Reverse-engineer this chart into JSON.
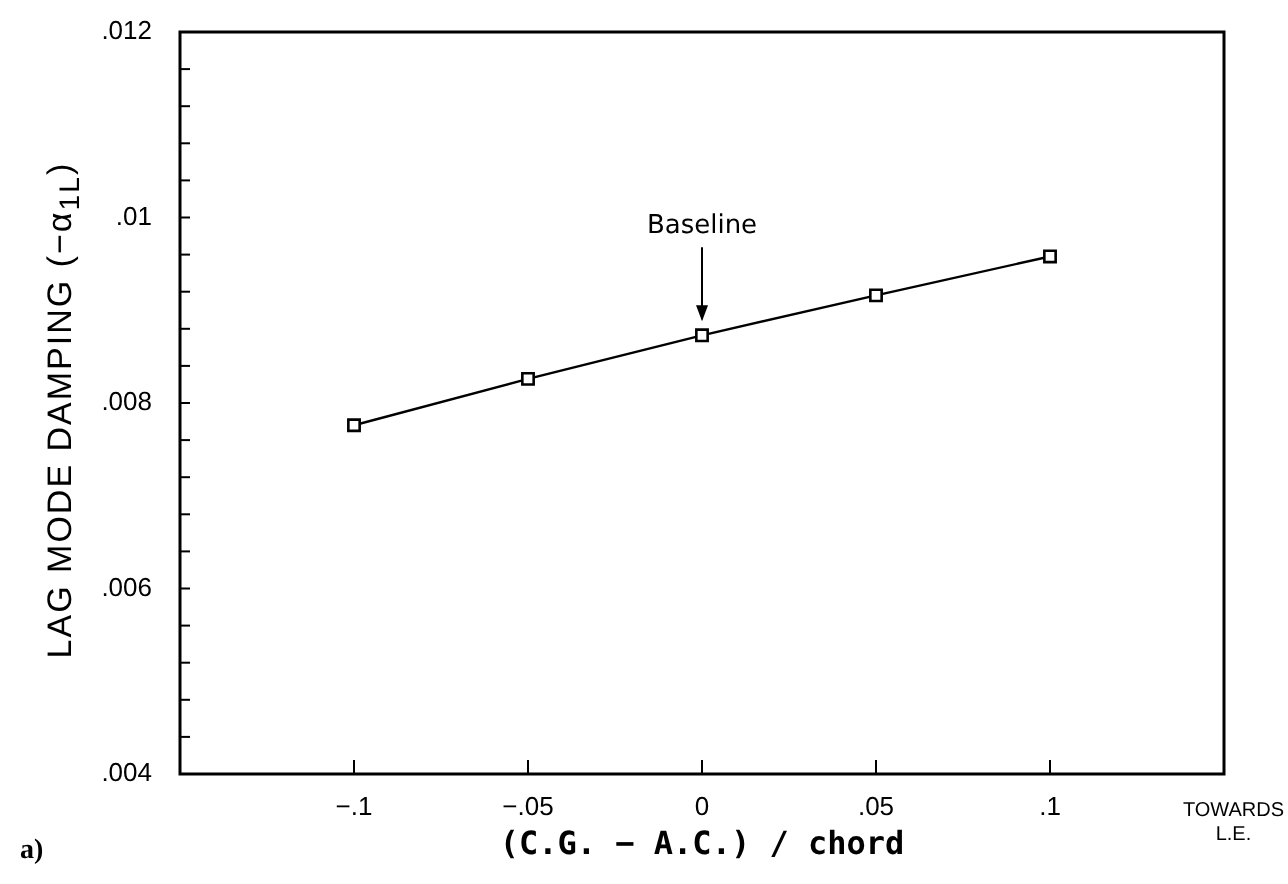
{
  "chart_data": {
    "type": "line",
    "xlabel": "(C.G. − A.C.) / chord",
    "ylabel": "LAG MODE DAMPING (−α$_{1L}$)",
    "x": [
      -0.1,
      -0.05,
      0,
      0.05,
      0.1
    ],
    "series": [
      {
        "color": "#000000",
        "values": [
          0.00776,
          0.00826,
          0.00873,
          0.00916,
          0.00958
        ]
      }
    ],
    "marker": "square",
    "line_style": "solid",
    "xlim": [
      -0.15,
      0.15
    ],
    "xticks": [
      {
        "value": -0.1,
        "label": "−.1"
      },
      {
        "value": -0.05,
        "label": "−.05"
      },
      0,
      {
        "value": 0.05,
        "label": ".05"
      },
      {
        "value": 0.1,
        "label": ".1"
      }
    ],
    "ylim": [
      0.004,
      0.012
    ],
    "yticks": [
      {
        "value": 0.004,
        "label": ".004"
      },
      {
        "value": 0.0044,
        "label": null
      },
      {
        "value": 0.0048,
        "label": null
      },
      {
        "value": 0.0052,
        "label": null
      },
      {
        "value": 0.0056,
        "label": null
      },
      {
        "value": 0.006,
        "label": ".006"
      },
      {
        "value": 0.0064,
        "label": null
      },
      {
        "value": 0.0068,
        "label": null
      },
      {
        "value": 0.0072,
        "label": null
      },
      {
        "value": 0.0076,
        "label": null
      },
      {
        "value": 0.008,
        "label": ".008"
      },
      {
        "value": 0.0084,
        "label": null
      },
      {
        "value": 0.0088,
        "label": null
      },
      {
        "value": 0.0092,
        "label": null
      },
      {
        "value": 0.0096,
        "label": null
      },
      {
        "value": 0.01,
        "label": ".01"
      },
      {
        "value": 0.0104,
        "label": null
      },
      {
        "value": 0.0108,
        "label": null
      },
      {
        "value": 0.0112,
        "label": null
      },
      {
        "value": 0.0116,
        "label": null
      },
      {
        "value": 0.012,
        "label": ".012"
      }
    ],
    "annotations": [
      {
        "text": "Baseline",
        "x": 0,
        "y": 0.00873
      },
      "TOWARDS\nL.E.",
      "a)"
    ]
  }
}
